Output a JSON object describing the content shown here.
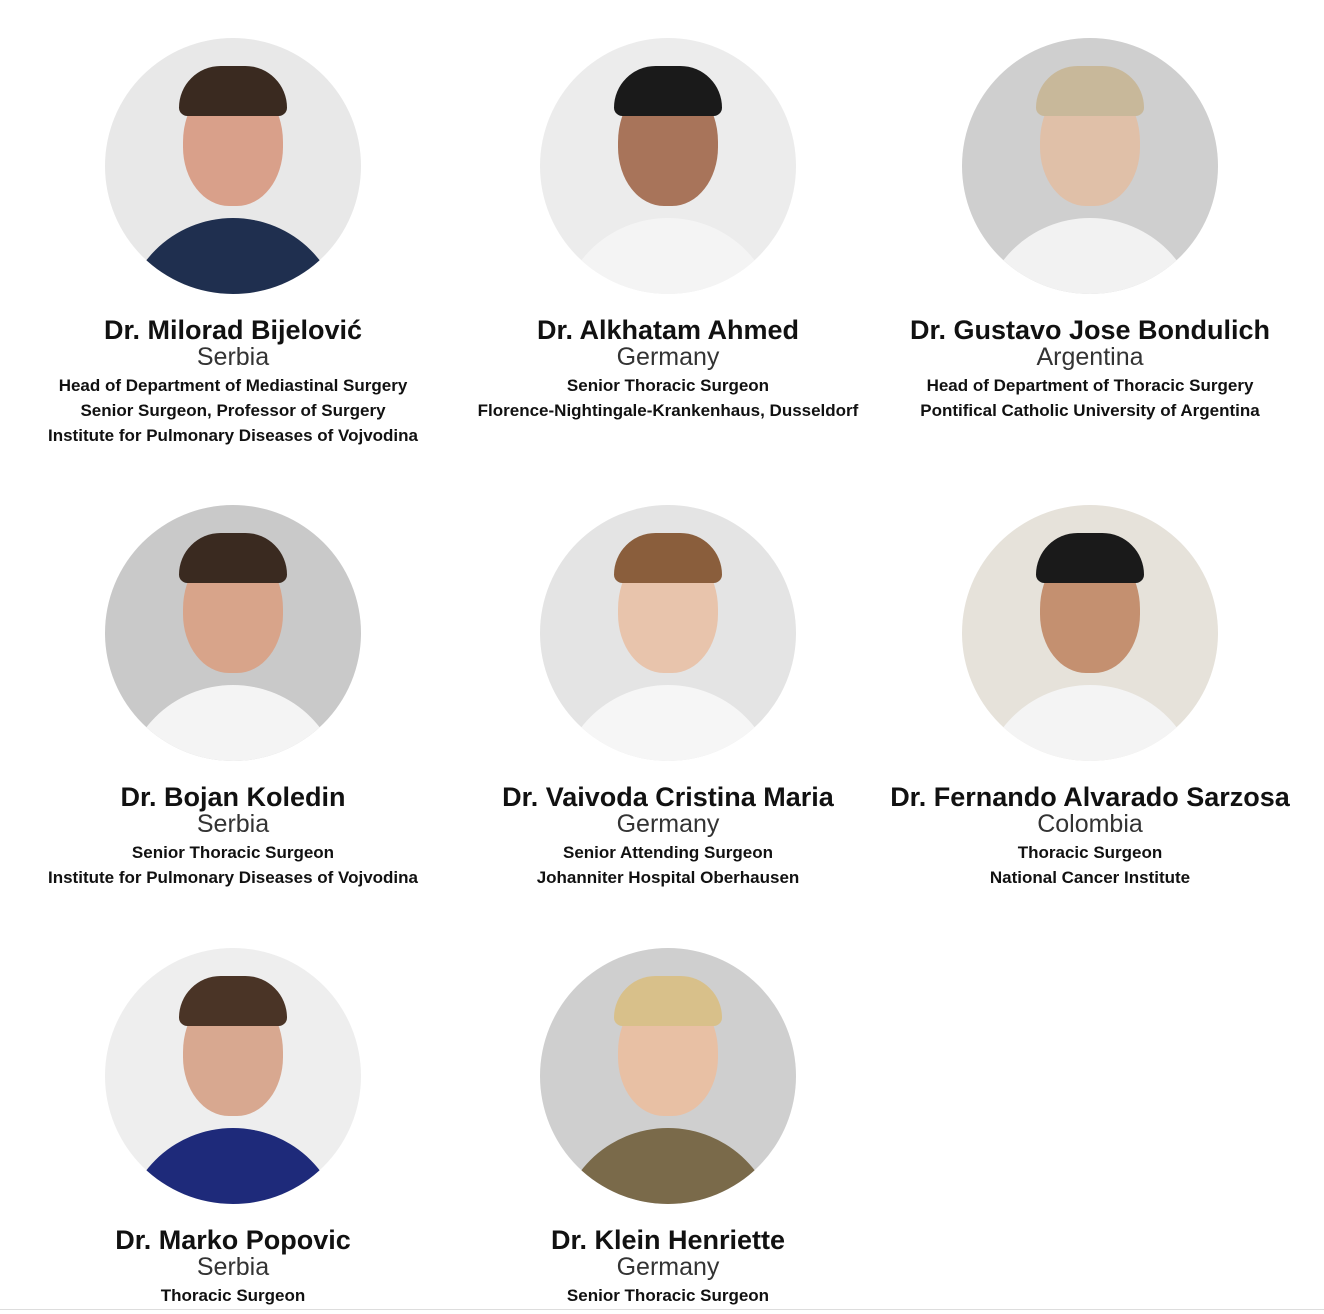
{
  "doctors": [
    {
      "name": "Dr. Milorad Bijelović",
      "country": "Serbia",
      "lines": [
        "Head of Department of Mediastinal Surgery",
        "Senior Surgeon,  Professor of Surgery",
        "Institute for Pulmonary Diseases of Vojvodina"
      ],
      "bg": "#e8e8e8",
      "hair": "#3a2a20",
      "skin": "#d9a08a",
      "clothes": "#1f2f4f"
    },
    {
      "name": "Dr. Alkhatam Ahmed",
      "country": "Germany",
      "lines": [
        "Senior Thoracic Surgeon",
        "Florence-Nightingale-Krankenhaus, Dusseldorf"
      ],
      "bg": "#ececec",
      "hair": "#1a1a1a",
      "skin": "#a8745a",
      "clothes": "#f4f4f4"
    },
    {
      "name": "Dr. Gustavo Jose Bondulich",
      "country": "Argentina",
      "lines": [
        "Head of Department of Thoracic Surgery",
        "Pontifical Catholic University of Argentina"
      ],
      "bg": "#cfcfcf",
      "hair": "#c8b89a",
      "skin": "#e0c0a8",
      "clothes": "#f2f2f2"
    },
    {
      "name": "Dr. Bojan Koledin",
      "country": "Serbia",
      "lines": [
        "Senior Thoracic Surgeon",
        "Institute for Pulmonary Diseases of Vojvodina"
      ],
      "bg": "#c9c9c9",
      "hair": "#3a2a20",
      "skin": "#d8a48a",
      "clothes": "#f4f4f4"
    },
    {
      "name": "Dr. Vaivoda Cristina Maria",
      "country": "Germany",
      "lines": [
        "Senior Attending Surgeon",
        "Johanniter Hospital Oberhausen"
      ],
      "bg": "#e4e4e4",
      "hair": "#8a5e3c",
      "skin": "#e8c4ac",
      "clothes": "#f6f6f6"
    },
    {
      "name": "Dr. Fernando Alvarado Sarzosa",
      "country": "Colombia",
      "lines": [
        "Thoracic Surgeon",
        "National Cancer Institute"
      ],
      "bg": "#e6e2da",
      "hair": "#1a1a1a",
      "skin": "#c49070",
      "clothes": "#f4f4f4"
    },
    {
      "name": "Dr. Marko Popovic",
      "country": "Serbia",
      "lines": [
        "Thoracic Surgeon"
      ],
      "bg": "#eeeeee",
      "hair": "#4a3426",
      "skin": "#d8a890",
      "clothes": "#1e2a7a"
    },
    {
      "name": "Dr. Klein Henriette",
      "country": "Germany",
      "lines": [
        "Senior Thoracic Surgeon"
      ],
      "bg": "#cfcfcf",
      "hair": "#d8c08a",
      "skin": "#e8c0a4",
      "clothes": "#7a6a4a"
    }
  ]
}
